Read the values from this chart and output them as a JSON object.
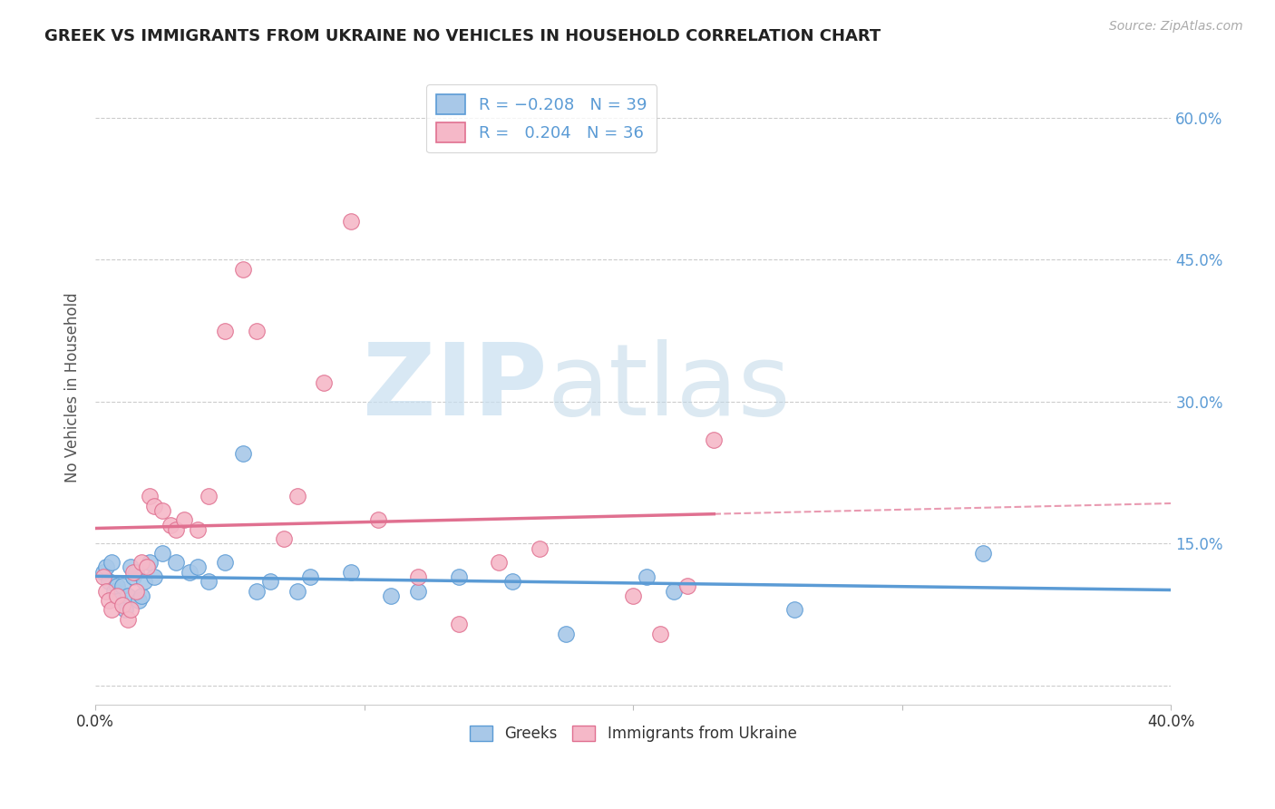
{
  "title": "GREEK VS IMMIGRANTS FROM UKRAINE NO VEHICLES IN HOUSEHOLD CORRELATION CHART",
  "source": "Source: ZipAtlas.com",
  "ylabel": "No Vehicles in Household",
  "xmin": 0.0,
  "xmax": 0.4,
  "ymin": -0.02,
  "ymax": 0.65,
  "yticks": [
    0.0,
    0.15,
    0.3,
    0.45,
    0.6
  ],
  "ytick_labels": [
    "",
    "15.0%",
    "30.0%",
    "45.0%",
    "60.0%"
  ],
  "xticks": [
    0.0,
    0.1,
    0.2,
    0.3,
    0.4
  ],
  "xtick_labels": [
    "0.0%",
    "",
    "",
    "",
    "40.0%"
  ],
  "color_greek": "#a8c8e8",
  "color_ukraine": "#f5b8c8",
  "color_greek_edge": "#5b9bd5",
  "color_ukraine_edge": "#e07090",
  "color_greek_line": "#5b9bd5",
  "color_ukraine_line": "#e07090",
  "watermark_zip": "ZIP",
  "watermark_atlas": "atlas",
  "watermark_color": "#daeaf5",
  "greek_x": [
    0.003,
    0.004,
    0.005,
    0.006,
    0.007,
    0.008,
    0.009,
    0.01,
    0.011,
    0.012,
    0.013,
    0.014,
    0.015,
    0.016,
    0.017,
    0.018,
    0.02,
    0.022,
    0.025,
    0.03,
    0.035,
    0.038,
    0.042,
    0.048,
    0.055,
    0.06,
    0.065,
    0.075,
    0.08,
    0.095,
    0.11,
    0.12,
    0.135,
    0.155,
    0.175,
    0.205,
    0.215,
    0.26,
    0.33
  ],
  "greek_y": [
    0.12,
    0.125,
    0.11,
    0.13,
    0.1,
    0.105,
    0.09,
    0.105,
    0.08,
    0.095,
    0.125,
    0.115,
    0.12,
    0.09,
    0.095,
    0.11,
    0.13,
    0.115,
    0.14,
    0.13,
    0.12,
    0.125,
    0.11,
    0.13,
    0.245,
    0.1,
    0.11,
    0.1,
    0.115,
    0.12,
    0.095,
    0.1,
    0.115,
    0.11,
    0.055,
    0.115,
    0.1,
    0.08,
    0.14
  ],
  "ukraine_x": [
    0.003,
    0.004,
    0.005,
    0.006,
    0.008,
    0.01,
    0.012,
    0.013,
    0.014,
    0.015,
    0.017,
    0.019,
    0.02,
    0.022,
    0.025,
    0.028,
    0.03,
    0.033,
    0.038,
    0.042,
    0.048,
    0.055,
    0.06,
    0.07,
    0.075,
    0.085,
    0.095,
    0.105,
    0.12,
    0.135,
    0.15,
    0.165,
    0.2,
    0.21,
    0.22,
    0.23
  ],
  "ukraine_y": [
    0.115,
    0.1,
    0.09,
    0.08,
    0.095,
    0.085,
    0.07,
    0.08,
    0.12,
    0.1,
    0.13,
    0.125,
    0.2,
    0.19,
    0.185,
    0.17,
    0.165,
    0.175,
    0.165,
    0.2,
    0.375,
    0.44,
    0.375,
    0.155,
    0.2,
    0.32,
    0.49,
    0.175,
    0.115,
    0.065,
    0.13,
    0.145,
    0.095,
    0.055,
    0.105,
    0.26
  ]
}
